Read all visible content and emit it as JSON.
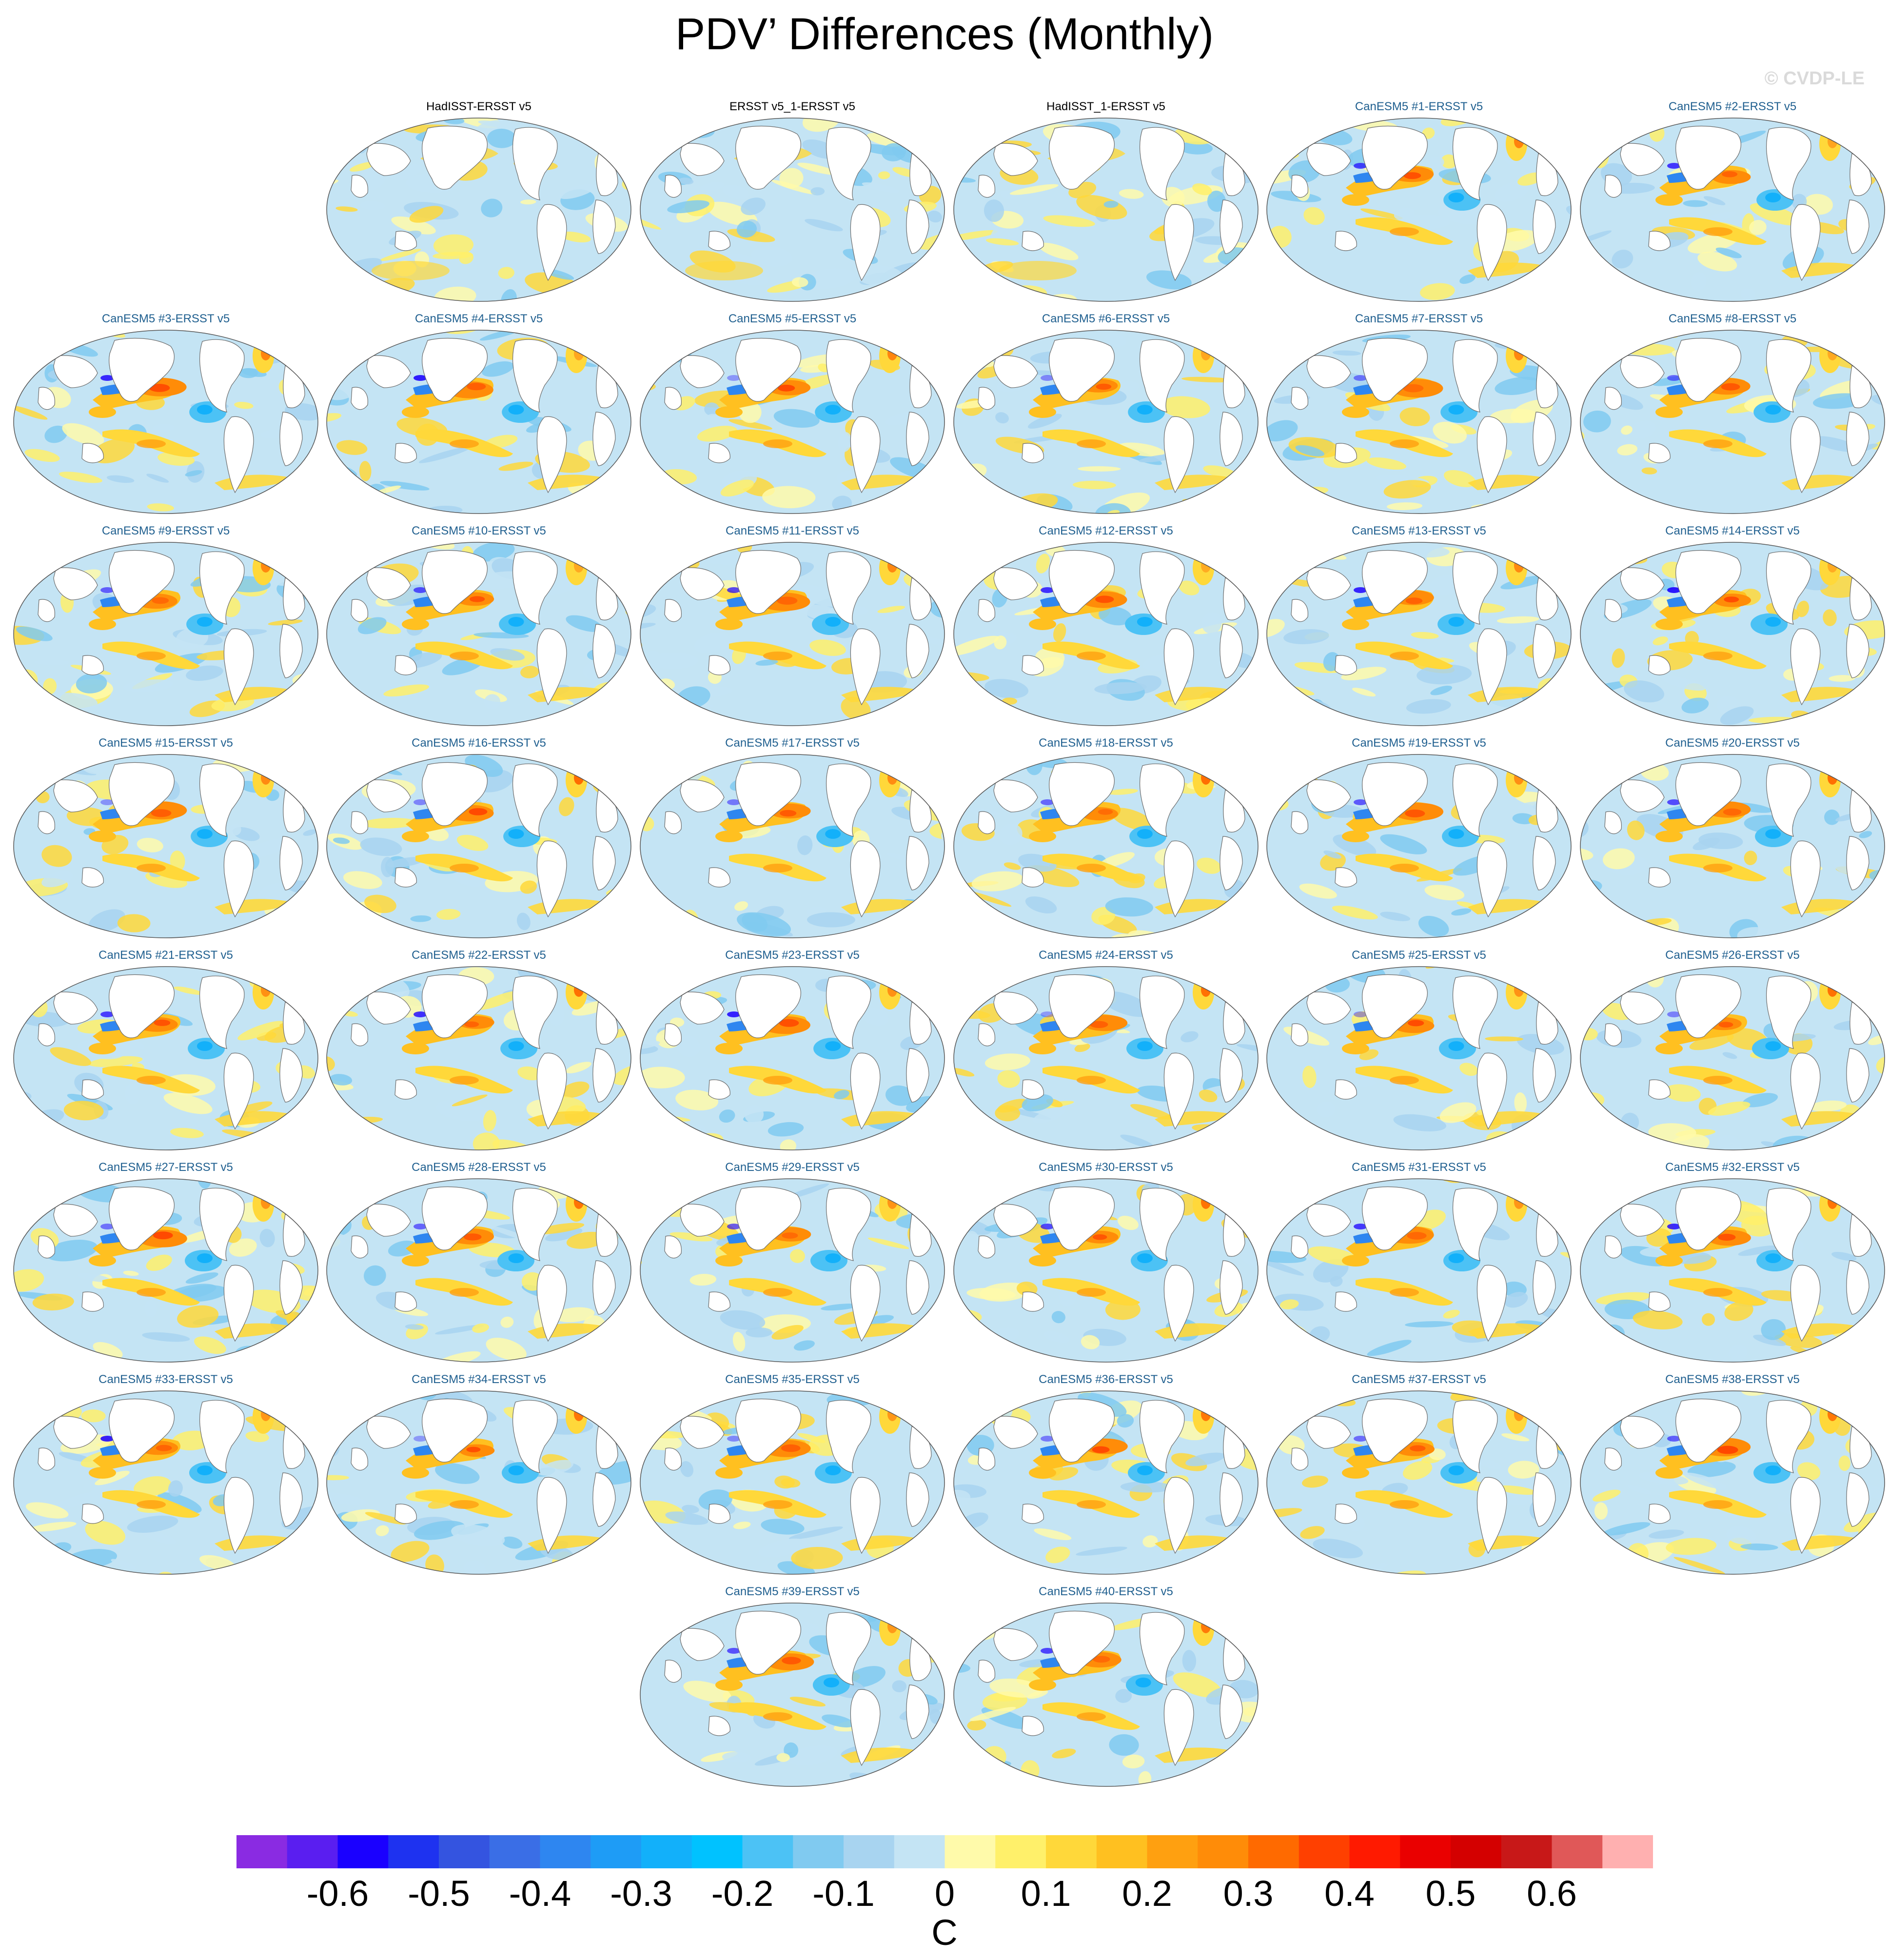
{
  "title": "PDV’ Differences (Monthly)",
  "watermark": "© CVDP-LE",
  "panels": [
    {
      "label": "HadISST-ERSST v5",
      "kind": "obs"
    },
    {
      "label": "ERSST v5_1-ERSST v5",
      "kind": "obs"
    },
    {
      "label": "HadISST_1-ERSST v5",
      "kind": "obs"
    },
    {
      "label": "CanESM5 #1-ERSST v5",
      "kind": "model"
    },
    {
      "label": "CanESM5 #2-ERSST v5",
      "kind": "model"
    },
    {
      "label": "CanESM5 #3-ERSST v5",
      "kind": "model"
    },
    {
      "label": "CanESM5 #4-ERSST v5",
      "kind": "model"
    },
    {
      "label": "CanESM5 #5-ERSST v5",
      "kind": "model"
    },
    {
      "label": "CanESM5 #6-ERSST v5",
      "kind": "model"
    },
    {
      "label": "CanESM5 #7-ERSST v5",
      "kind": "model"
    },
    {
      "label": "CanESM5 #8-ERSST v5",
      "kind": "model"
    },
    {
      "label": "CanESM5 #9-ERSST v5",
      "kind": "model"
    },
    {
      "label": "CanESM5 #10-ERSST v5",
      "kind": "model"
    },
    {
      "label": "CanESM5 #11-ERSST v5",
      "kind": "model"
    },
    {
      "label": "CanESM5 #12-ERSST v5",
      "kind": "model"
    },
    {
      "label": "CanESM5 #13-ERSST v5",
      "kind": "model"
    },
    {
      "label": "CanESM5 #14-ERSST v5",
      "kind": "model"
    },
    {
      "label": "CanESM5 #15-ERSST v5",
      "kind": "model"
    },
    {
      "label": "CanESM5 #16-ERSST v5",
      "kind": "model"
    },
    {
      "label": "CanESM5 #17-ERSST v5",
      "kind": "model"
    },
    {
      "label": "CanESM5 #18-ERSST v5",
      "kind": "model"
    },
    {
      "label": "CanESM5 #19-ERSST v5",
      "kind": "model"
    },
    {
      "label": "CanESM5 #20-ERSST v5",
      "kind": "model"
    },
    {
      "label": "CanESM5 #21-ERSST v5",
      "kind": "model"
    },
    {
      "label": "CanESM5 #22-ERSST v5",
      "kind": "model"
    },
    {
      "label": "CanESM5 #23-ERSST v5",
      "kind": "model"
    },
    {
      "label": "CanESM5 #24-ERSST v5",
      "kind": "model"
    },
    {
      "label": "CanESM5 #25-ERSST v5",
      "kind": "model"
    },
    {
      "label": "CanESM5 #26-ERSST v5",
      "kind": "model"
    },
    {
      "label": "CanESM5 #27-ERSST v5",
      "kind": "model"
    },
    {
      "label": "CanESM5 #28-ERSST v5",
      "kind": "model"
    },
    {
      "label": "CanESM5 #29-ERSST v5",
      "kind": "model"
    },
    {
      "label": "CanESM5 #30-ERSST v5",
      "kind": "model"
    },
    {
      "label": "CanESM5 #31-ERSST v5",
      "kind": "model"
    },
    {
      "label": "CanESM5 #32-ERSST v5",
      "kind": "model"
    },
    {
      "label": "CanESM5 #33-ERSST v5",
      "kind": "model"
    },
    {
      "label": "CanESM5 #34-ERSST v5",
      "kind": "model"
    },
    {
      "label": "CanESM5 #35-ERSST v5",
      "kind": "model"
    },
    {
      "label": "CanESM5 #36-ERSST v5",
      "kind": "model"
    },
    {
      "label": "CanESM5 #37-ERSST v5",
      "kind": "model"
    },
    {
      "label": "CanESM5 #38-ERSST v5",
      "kind": "model"
    },
    {
      "label": "CanESM5 #39-ERSST v5",
      "kind": "model"
    },
    {
      "label": "CanESM5 #40-ERSST v5",
      "kind": "model"
    }
  ],
  "colorbar": {
    "unit": "C",
    "tick_labels": [
      "-0.6",
      "-0.5",
      "-0.4",
      "-0.3",
      "-0.2",
      "-0.1",
      "0",
      "0.1",
      "0.2",
      "0.3",
      "0.4",
      "0.5",
      "0.6"
    ],
    "colors": [
      "#8a2be2",
      "#5a1ef0",
      "#1a00ff",
      "#1e32f0",
      "#3454e0",
      "#3a6ee6",
      "#2e86f0",
      "#1e9cf6",
      "#12b0fa",
      "#00c2ff",
      "#4cc2f5",
      "#80caf0",
      "#a8d4f0",
      "#c4e4f4",
      "#fffaaa",
      "#fff06a",
      "#ffd83a",
      "#ffc020",
      "#ffa010",
      "#ff8c08",
      "#ff6a00",
      "#ff4000",
      "#ff1a00",
      "#ea0000",
      "#d40000",
      "#c81818",
      "#e05858",
      "#ffb0b0"
    ],
    "boundaries": [
      -0.65,
      -0.6,
      -0.55,
      -0.5,
      -0.45,
      -0.4,
      -0.35,
      -0.3,
      -0.25,
      -0.2,
      -0.15,
      -0.1,
      -0.05,
      0,
      0.05,
      0.1,
      0.15,
      0.2,
      0.25,
      0.3,
      0.35,
      0.4,
      0.45,
      0.5,
      0.55,
      0.6,
      0.65
    ]
  }
}
